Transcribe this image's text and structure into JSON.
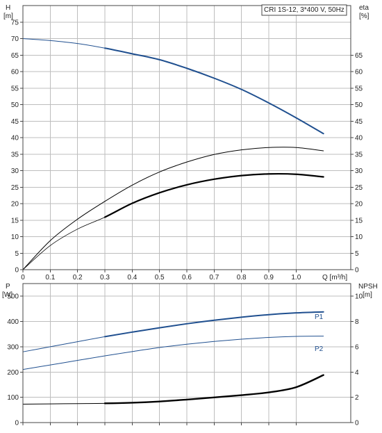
{
  "chart_data": [
    {
      "type": "line",
      "title": "CRI 1S-12, 3*400 V, 50Hz",
      "x_axis": {
        "label": "Q [m³/h]",
        "range": [
          0,
          1.2
        ],
        "ticks": [
          0,
          0.1,
          0.2,
          0.3,
          0.4,
          0.5,
          0.6,
          0.7,
          0.8,
          0.9,
          1.0
        ]
      },
      "y_left": {
        "label_top": "H",
        "label_unit": "[m]",
        "range": [
          0,
          80
        ],
        "ticks": [
          0,
          5,
          10,
          15,
          20,
          25,
          30,
          35,
          40,
          45,
          50,
          55,
          60,
          65,
          70,
          75
        ]
      },
      "y_right": {
        "label_top": "eta",
        "label_unit": "[%]",
        "range": [
          0,
          80
        ],
        "ticks": [
          0,
          5,
          10,
          15,
          20,
          25,
          30,
          35,
          40,
          45,
          50,
          55,
          60,
          65
        ]
      },
      "grid": true,
      "series": [
        {
          "axis": "left",
          "color": "#1f4f8f",
          "width_thin": 1,
          "width_thick": 2,
          "thick_from": 0.3,
          "x": [
            0,
            0.1,
            0.2,
            0.3,
            0.4,
            0.5,
            0.6,
            0.7,
            0.8,
            0.9,
            1.0,
            1.1
          ],
          "y": [
            70,
            69.4,
            68.5,
            67.1,
            65.4,
            63.6,
            61.0,
            58.0,
            54.6,
            50.5,
            46.0,
            41.2
          ]
        },
        {
          "axis": "right",
          "color": "#000000",
          "width_thin": 1,
          "width_thick": 1,
          "thick_from": 0.3,
          "x": [
            0,
            0.1,
            0.2,
            0.3,
            0.4,
            0.5,
            0.6,
            0.7,
            0.8,
            0.9,
            1.0,
            1.1
          ],
          "y": [
            0,
            8.8,
            15.3,
            20.7,
            25.6,
            29.6,
            32.6,
            34.9,
            36.3,
            37.0,
            37.0,
            36.0
          ]
        },
        {
          "axis": "right",
          "color": "#000000",
          "width_thin": 0.8,
          "width_thick": 2.2,
          "thick_from": 0.3,
          "x": [
            0,
            0.1,
            0.2,
            0.3,
            0.4,
            0.5,
            0.6,
            0.7,
            0.8,
            0.9,
            1.0,
            1.1
          ],
          "y": [
            0,
            7.3,
            12.3,
            15.9,
            20.1,
            23.3,
            25.7,
            27.4,
            28.5,
            29.0,
            28.9,
            28.1
          ]
        }
      ]
    },
    {
      "type": "line",
      "x_axis": {
        "range": [
          0,
          1.2
        ]
      },
      "y_left": {
        "label_top": "P",
        "label_unit": "[W]",
        "range": [
          0,
          550
        ],
        "ticks": [
          0,
          100,
          200,
          300,
          400,
          500
        ]
      },
      "y_right": {
        "label_top": "NPSH",
        "label_unit": "[m]",
        "range": [
          0,
          11
        ],
        "ticks": [
          0,
          2,
          4,
          6,
          8,
          10
        ]
      },
      "grid": true,
      "series": [
        {
          "name": "P1",
          "axis": "left",
          "color": "#1f4f8f",
          "width_thin": 1,
          "width_thick": 2,
          "thick_from": 0.3,
          "x": [
            0,
            0.1,
            0.2,
            0.3,
            0.4,
            0.5,
            0.6,
            0.7,
            0.8,
            0.9,
            1.0,
            1.1
          ],
          "y": [
            280,
            300,
            320,
            340,
            358,
            375,
            391,
            405,
            417,
            427,
            434,
            438
          ]
        },
        {
          "name": "P2",
          "axis": "left",
          "color": "#1f4f8f",
          "width_thin": 1,
          "width_thick": 1,
          "thick_from": 0.3,
          "x": [
            0,
            0.1,
            0.2,
            0.3,
            0.4,
            0.5,
            0.6,
            0.7,
            0.8,
            0.9,
            1.0,
            1.1
          ],
          "y": [
            210,
            228,
            246,
            264,
            281,
            297,
            310,
            321,
            330,
            337,
            341,
            342
          ]
        },
        {
          "axis": "right",
          "color": "#000000",
          "width_thin": 1,
          "width_thick": 2.4,
          "thick_from": 0.3,
          "x": [
            0,
            0.1,
            0.2,
            0.3,
            0.4,
            0.5,
            0.6,
            0.7,
            0.8,
            0.9,
            1.0,
            1.1
          ],
          "y": [
            1.46,
            1.48,
            1.5,
            1.52,
            1.57,
            1.67,
            1.82,
            1.99,
            2.17,
            2.39,
            2.8,
            3.76
          ]
        }
      ]
    }
  ]
}
